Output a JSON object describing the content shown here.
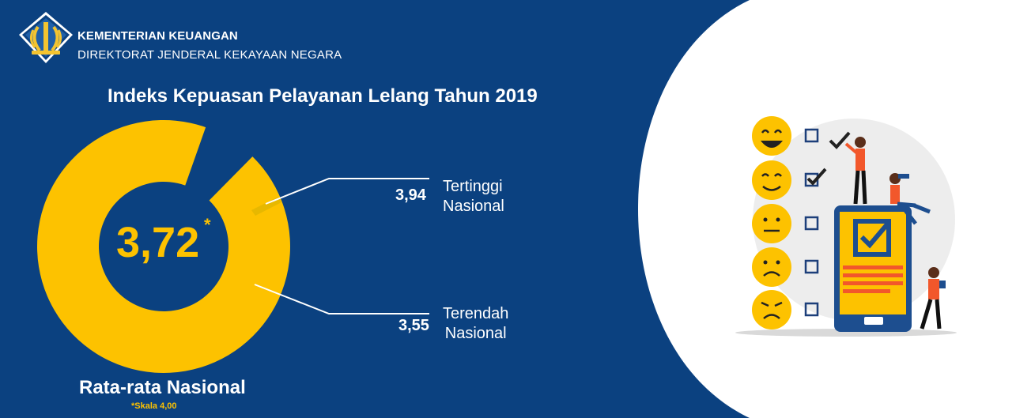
{
  "header": {
    "org_name": "KEMENTERIAN KEUANGAN",
    "directorate": "DIREKTORAT JENDERAL KEKAYAAN NEGARA"
  },
  "title": "Indeks Kepuasan Pelayanan Lelang Tahun 2019",
  "national_average": {
    "value": "3,72",
    "asterisk": "*",
    "label": "Rata-rata Nasional",
    "scale_note": "*Skala 4,00",
    "fill_fraction": 0.93
  },
  "highest": {
    "value": "3,94",
    "label_line1": "Tertinggi",
    "label_line2": "Nasional"
  },
  "lowest": {
    "value": "3,55",
    "label_line1": "Terendah",
    "label_line2": "Nasional"
  },
  "colors": {
    "background_blue": "#0B4180",
    "ring_yellow": "#FDC200",
    "white": "#FFFFFF",
    "illustration_orange": "#F2572B"
  },
  "illustration": {
    "faces": [
      "laughing-face-icon",
      "smile-face-icon",
      "neutral-face-icon",
      "sad-face-icon",
      "angry-face-icon"
    ],
    "checked_boxes": [
      true,
      true,
      false,
      false,
      false
    ]
  }
}
